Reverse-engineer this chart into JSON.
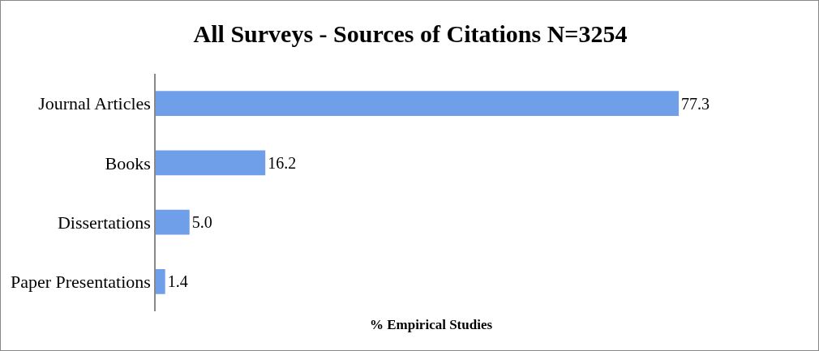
{
  "chart_data": {
    "type": "bar",
    "orientation": "horizontal",
    "title": "All Surveys - Sources of Citations N=3254",
    "xlabel": "% Empirical Studies",
    "categories": [
      "Journal Articles",
      "Books",
      "Dissertations",
      "Paper Presentations"
    ],
    "values": [
      77.3,
      16.2,
      5.0,
      1.4
    ],
    "value_labels": [
      "77.3",
      "16.2",
      "5.0",
      "1.4"
    ],
    "color": "#6f9fe8",
    "tick_labels": "y"
  }
}
